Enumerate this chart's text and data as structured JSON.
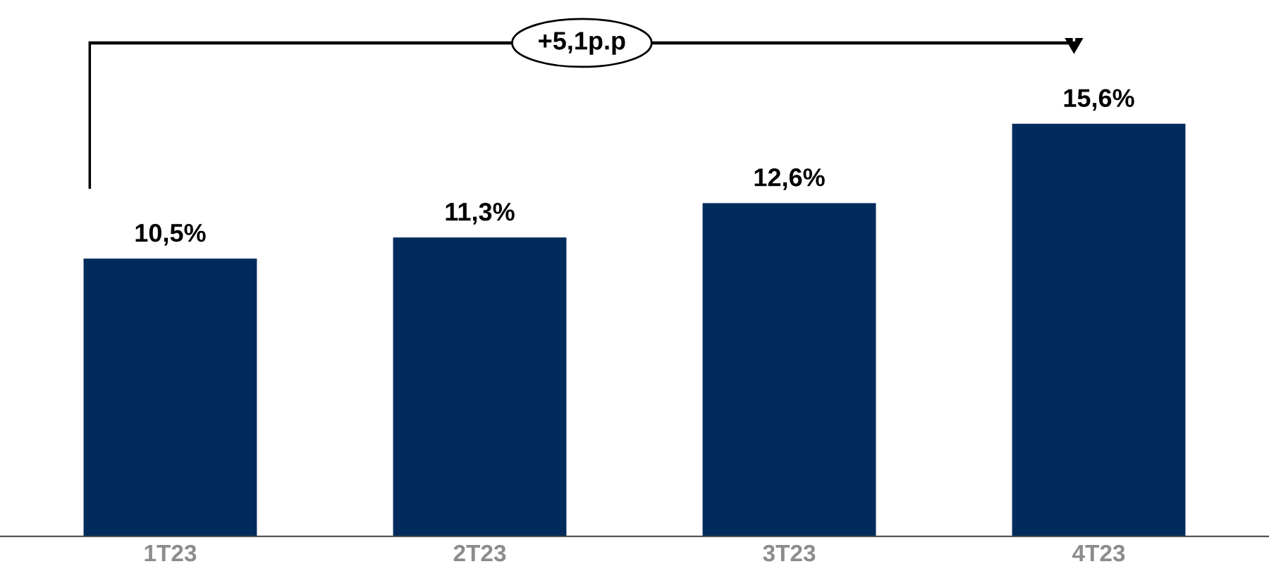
{
  "chart_data": {
    "type": "bar",
    "categories": [
      "1T23",
      "2T23",
      "3T23",
      "4T23"
    ],
    "values": [
      10.5,
      11.3,
      12.6,
      15.6
    ],
    "value_labels": [
      "10,5%",
      "11,3%",
      "12,6%",
      "15,6%"
    ],
    "color": "#002b5c",
    "tick_labels": "x",
    "grid": false,
    "legend": false,
    "annotations": [
      "+5,1p.p"
    ]
  }
}
